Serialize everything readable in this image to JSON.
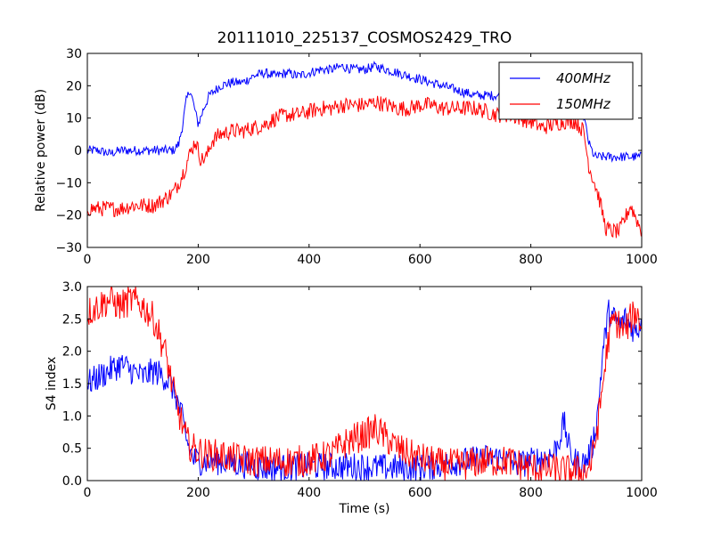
{
  "chart_data": [
    {
      "type": "line",
      "title": "20111010_225137_COSMOS2429_TRO",
      "xlabel": "",
      "ylabel": "Relative power (dB)",
      "xlim": [
        0,
        1000
      ],
      "ylim": [
        -30,
        30
      ],
      "xticks": [
        "0",
        "200",
        "400",
        "600",
        "800",
        "1000"
      ],
      "yticks": [
        "−30",
        "−20",
        "−10",
        "0",
        "10",
        "20",
        "30"
      ],
      "legend_position": "top-right",
      "grid": false,
      "series": [
        {
          "name": "400MHz",
          "color": "#0000ff",
          "x": [
            0,
            20,
            40,
            60,
            80,
            100,
            120,
            140,
            155,
            165,
            172,
            178,
            185,
            192,
            200,
            210,
            220,
            240,
            260,
            280,
            300,
            320,
            340,
            360,
            380,
            400,
            420,
            440,
            460,
            480,
            500,
            520,
            540,
            560,
            580,
            600,
            620,
            640,
            660,
            680,
            700,
            720,
            740,
            760,
            780,
            800,
            820,
            840,
            860,
            880,
            895,
            905,
            915,
            925,
            940,
            960,
            980,
            1000
          ],
          "y": [
            0,
            0,
            -1,
            0,
            0,
            0,
            0,
            0,
            0,
            2,
            8,
            15,
            19,
            14,
            8,
            13,
            17,
            20,
            21,
            21,
            23,
            24,
            23,
            24,
            23,
            24,
            25,
            25,
            26,
            25,
            25,
            26,
            25,
            24,
            23,
            22,
            21,
            20,
            19,
            18,
            17,
            17,
            17,
            16,
            16,
            16,
            16,
            17,
            17,
            15,
            11,
            2,
            -2,
            -2,
            -2,
            -2,
            -2,
            -2
          ],
          "noise": 1.5
        },
        {
          "name": "150MHz",
          "color": "#ff0000",
          "x": [
            0,
            20,
            40,
            60,
            80,
            100,
            120,
            140,
            155,
            165,
            175,
            185,
            195,
            205,
            215,
            225,
            240,
            260,
            280,
            300,
            320,
            340,
            360,
            380,
            400,
            420,
            440,
            460,
            480,
            500,
            520,
            540,
            560,
            580,
            600,
            620,
            640,
            660,
            680,
            700,
            720,
            740,
            760,
            780,
            800,
            820,
            840,
            860,
            880,
            895,
            905,
            915,
            925,
            935,
            945,
            960,
            980,
            1000
          ],
          "y": [
            -18,
            -18,
            -18,
            -18,
            -17,
            -17,
            -17,
            -15,
            -13,
            -10,
            -6,
            -1,
            3,
            -3,
            -2,
            3,
            5,
            6,
            6,
            7,
            8,
            10,
            11,
            11,
            12,
            13,
            13,
            14,
            14,
            14,
            15,
            14,
            13,
            13,
            14,
            14,
            13,
            13,
            13,
            13,
            12,
            11,
            11,
            10,
            9,
            7,
            8,
            9,
            9,
            6,
            -5,
            -10,
            -16,
            -24,
            -25,
            -25,
            -17,
            -25
          ],
          "noise": 2.5
        }
      ]
    },
    {
      "type": "line",
      "title": "",
      "xlabel": "Time (s)",
      "ylabel": "S4 index",
      "xlim": [
        0,
        1000
      ],
      "ylim": [
        0,
        3
      ],
      "xticks": [
        "0",
        "200",
        "400",
        "600",
        "800",
        "1000"
      ],
      "yticks": [
        "0.0",
        "0.5",
        "1.0",
        "1.5",
        "2.0",
        "2.5",
        "3.0"
      ],
      "grid": false,
      "series": [
        {
          "name": "400MHz",
          "color": "#0000ff",
          "x": [
            0,
            20,
            40,
            60,
            80,
            100,
            120,
            140,
            150,
            160,
            170,
            180,
            190,
            200,
            220,
            240,
            260,
            280,
            300,
            320,
            340,
            360,
            380,
            400,
            420,
            440,
            460,
            480,
            500,
            520,
            540,
            560,
            580,
            600,
            620,
            640,
            660,
            680,
            700,
            720,
            740,
            760,
            780,
            800,
            820,
            840,
            850,
            860,
            870,
            880,
            890,
            900,
            910,
            920,
            930,
            940,
            950,
            960,
            970,
            980,
            990,
            1000
          ],
          "y": [
            1.5,
            1.6,
            1.7,
            1.8,
            1.7,
            1.6,
            1.7,
            1.6,
            1.5,
            1.3,
            1.0,
            0.6,
            0.35,
            0.3,
            0.3,
            0.3,
            0.28,
            0.25,
            0.22,
            0.2,
            0.2,
            0.2,
            0.22,
            0.22,
            0.22,
            0.22,
            0.22,
            0.22,
            0.22,
            0.2,
            0.2,
            0.2,
            0.2,
            0.2,
            0.22,
            0.25,
            0.28,
            0.3,
            0.32,
            0.35,
            0.35,
            0.3,
            0.25,
            0.3,
            0.35,
            0.4,
            0.6,
            0.9,
            0.45,
            0.3,
            0.25,
            0.3,
            0.5,
            1.0,
            2.0,
            2.6,
            2.5,
            2.4,
            2.5,
            2.4,
            2.3,
            2.5
          ],
          "noise": 0.22
        },
        {
          "name": "150MHz",
          "color": "#ff0000",
          "x": [
            0,
            20,
            40,
            60,
            80,
            100,
            120,
            140,
            150,
            160,
            170,
            180,
            190,
            200,
            220,
            240,
            260,
            280,
            300,
            320,
            340,
            360,
            380,
            400,
            420,
            440,
            460,
            480,
            500,
            520,
            540,
            560,
            580,
            600,
            620,
            640,
            660,
            680,
            700,
            720,
            740,
            760,
            780,
            800,
            820,
            840,
            860,
            880,
            900,
            910,
            920,
            930,
            940,
            950,
            960,
            970,
            980,
            990,
            1000
          ],
          "y": [
            2.6,
            2.7,
            2.8,
            2.7,
            2.8,
            2.7,
            2.5,
            2.0,
            1.6,
            1.2,
            0.9,
            0.6,
            0.5,
            0.45,
            0.4,
            0.4,
            0.35,
            0.32,
            0.3,
            0.3,
            0.3,
            0.3,
            0.3,
            0.32,
            0.35,
            0.4,
            0.55,
            0.65,
            0.7,
            0.8,
            0.65,
            0.5,
            0.4,
            0.35,
            0.3,
            0.25,
            0.25,
            0.25,
            0.28,
            0.3,
            0.3,
            0.3,
            0.25,
            0.2,
            0.18,
            0.18,
            0.15,
            0.15,
            0.15,
            0.3,
            0.8,
            1.5,
            2.2,
            2.5,
            2.4,
            2.3,
            2.5,
            2.6,
            2.4
          ],
          "noise": 0.25
        }
      ]
    }
  ]
}
